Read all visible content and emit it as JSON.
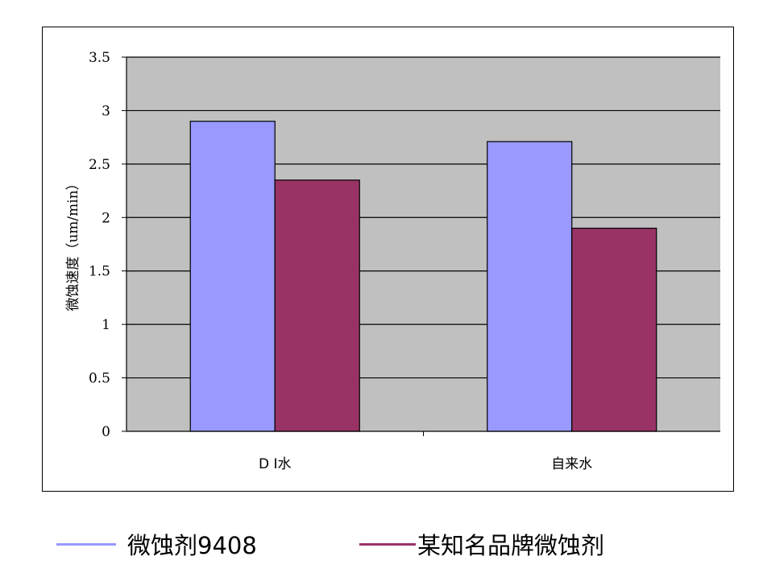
{
  "chart_data": {
    "type": "bar",
    "categories": [
      "D I水",
      "自来水"
    ],
    "series": [
      {
        "name": "微蚀剂9408",
        "values": [
          2.9,
          2.71
        ],
        "color": "#9999FF"
      },
      {
        "name": "某知名品牌微蚀剂",
        "values": [
          2.35,
          1.9
        ],
        "color": "#993366"
      }
    ],
    "title": "",
    "xlabel": "",
    "ylabel": "微蚀速度（um/min）",
    "ylim": [
      0,
      3.5
    ],
    "yticks": [
      "0",
      "0.5",
      "1",
      "1.5",
      "2",
      "2.5",
      "3",
      "3.5"
    ],
    "plot_background": "#C0C0C0",
    "grid": true,
    "legend_position": "bottom"
  }
}
